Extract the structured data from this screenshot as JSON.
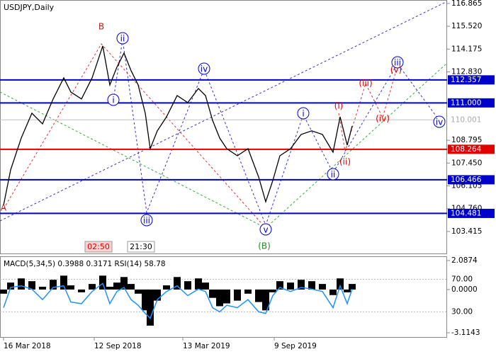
{
  "chart_data": [
    {
      "type": "line",
      "title": "USDJPY,Daily",
      "color": "#000000",
      "x": [
        2,
        12,
        27,
        42,
        57,
        72,
        87,
        97,
        112,
        127,
        142,
        152,
        162,
        172,
        182,
        192,
        202,
        209,
        219,
        232,
        247,
        262,
        277,
        287,
        297,
        307,
        317,
        332,
        347,
        362,
        372,
        382,
        392,
        407,
        422,
        437,
        452,
        467,
        477,
        487,
        494
      ],
      "values": [
        104.96,
        107.05,
        108.93,
        110.39,
        109.76,
        111.23,
        112.48,
        111.64,
        111.23,
        112.48,
        114.36,
        112.06,
        113.11,
        113.94,
        112.9,
        112.06,
        110.39,
        108.3,
        109.35,
        110.18,
        111.43,
        111.02,
        111.85,
        111.43,
        109.97,
        108.93,
        108.3,
        107.88,
        108.3,
        106.63,
        105.17,
        106.42,
        107.88,
        108.3,
        109.14,
        109.35,
        109.14,
        108.09,
        110.18,
        108.51,
        109.64
      ],
      "xlim": [
        0,
        628
      ],
      "xticks": [
        {
          "value": 2,
          "label": "16 Mar 2018"
        },
        {
          "value": 130,
          "label": "12 Sep 2018"
        },
        {
          "value": 255,
          "label": "13 Mar 2019"
        },
        {
          "value": 384,
          "label": "9 Sep 2019"
        }
      ],
      "ylim": [
        102.16,
        117.07
      ],
      "yticks": [
        116.865,
        {
          "value": 115.52,
          "label": "115.520"
        },
        114.175,
        {
          "value": 112.83,
          "label": "112.830"
        },
        108.795,
        {
          "value": 107.45,
          "label": "107.450"
        },
        106.105,
        {
          "value": 104.76,
          "label": "104.760"
        },
        103.415
      ],
      "levels": [
        {
          "value": 112.357,
          "color": "#0000cc"
        },
        {
          "value": 111,
          "label": "111.000",
          "color": "#0000cc"
        },
        {
          "value": 110.001,
          "color": "#c0c0c0"
        },
        {
          "value": 108.264,
          "color": "#e00000"
        },
        {
          "value": 106.466,
          "color": "#0000cc"
        },
        {
          "value": 104.481,
          "color": "#0000cc"
        }
      ],
      "annotations": [
        {
          "text": "A",
          "color": "#b22222"
        },
        {
          "text": "B",
          "color": "#b22222"
        },
        {
          "text": "i",
          "color": "#0000cc",
          "circled": true
        },
        {
          "text": "ii",
          "color": "#0000cc",
          "circled": true
        },
        {
          "text": "iii",
          "color": "#0000cc",
          "circled": true
        },
        {
          "text": "iv",
          "color": "#0000cc",
          "circled": true
        },
        {
          "text": "v",
          "color": "#0000cc",
          "circled": true
        },
        {
          "text": "(B)",
          "color": "#228b22"
        },
        {
          "text": "i",
          "color": "#0000cc",
          "circled": true
        },
        {
          "text": "ii",
          "color": "#0000cc",
          "circled": true
        },
        {
          "text": "iii",
          "color": "#0000cc",
          "circled": true
        },
        {
          "text": "iv",
          "color": "#0000cc",
          "circled": true
        },
        {
          "text": "(i)",
          "color": "#e00000"
        },
        {
          "text": "(ii)",
          "color": "#e00000"
        },
        {
          "text": "(iii)",
          "color": "#e00000"
        },
        {
          "text": "(iv)",
          "color": "#e00000"
        },
        {
          "text": "(v)",
          "color": "#e00000"
        }
      ],
      "time_labels": [
        "02:50",
        "21:30"
      ]
    },
    {
      "type": "macd",
      "title": "MACD(5,34,5) 0.3988 0.3171 RSI(14) 58.78",
      "histogram": {
        "color": "#000000",
        "values": [
          -0.3,
          0.5,
          0.8,
          0.6,
          0.2,
          0.7,
          1.0,
          0.3,
          -0.2,
          0.4,
          1.0,
          0.2,
          0.5,
          0.9,
          0.4,
          -0.3,
          -1.5,
          -2.6,
          -0.8,
          0.3,
          0.9,
          0.6,
          0.8,
          0.5,
          -0.6,
          -1.2,
          -1.0,
          -0.8,
          -0.3,
          -0.9,
          -1.5,
          -0.2,
          0.6,
          0.5,
          0.7,
          0.6,
          0.4,
          -0.4,
          0.8,
          -0.2,
          0.4
        ]
      },
      "rsi": {
        "color": "#1e90ff",
        "axis": "y2",
        "values": [
          35,
          60,
          62,
          58,
          45,
          60,
          62,
          42,
          40,
          55,
          65,
          40,
          55,
          60,
          45,
          38,
          28,
          22,
          45,
          55,
          62,
          50,
          58,
          55,
          35,
          30,
          38,
          35,
          45,
          30,
          28,
          50,
          60,
          55,
          60,
          58,
          55,
          35,
          62,
          40,
          58
        ]
      },
      "ylim": [
        -3.42,
        2.393
      ],
      "yticks": [
        2.0874,
        {
          "value": 0,
          "label": "0.0000"
        },
        -3.1143
      ],
      "y2lim": [
        -1.1,
        98.4
      ],
      "y2ticks": [
        {
          "value": 70,
          "label": "70.00"
        },
        {
          "value": 30,
          "label": "30.00"
        }
      ]
    }
  ]
}
